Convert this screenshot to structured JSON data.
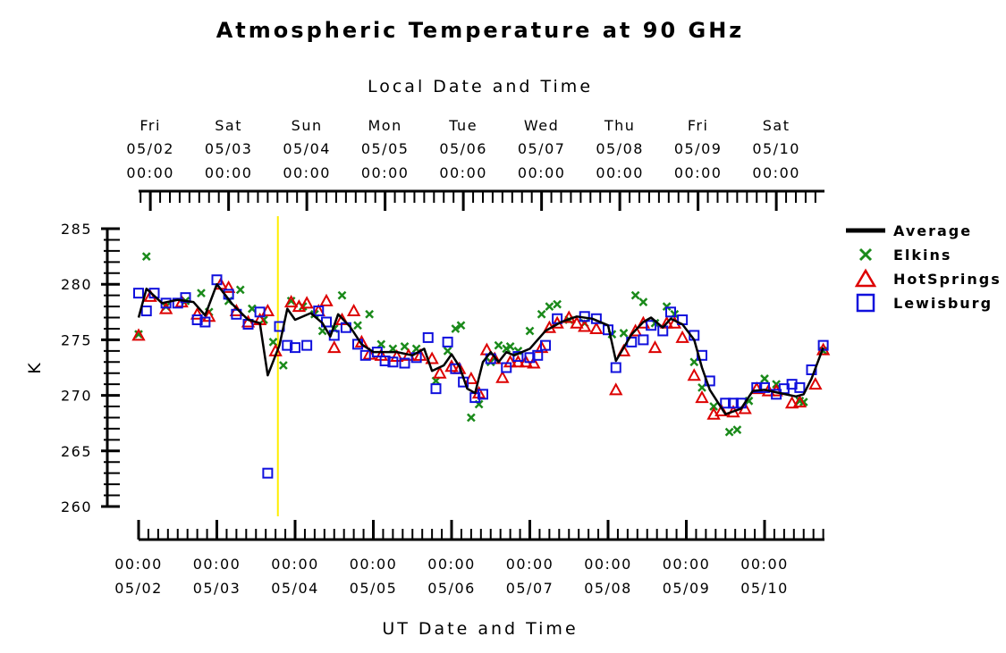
{
  "chart_data": {
    "type": "scatter",
    "title": "Atmospheric Temperature at 90 GHz",
    "top_axis_label": "Local Date and Time",
    "xlabel": "UT Date and Time",
    "ylabel": "K",
    "ylim": [
      260,
      285
    ],
    "yticks": [
      "260",
      "265",
      "270",
      "275",
      "280",
      "285"
    ],
    "xlim": [
      "2008-05-02 00:00",
      "2008-05-10 20:00"
    ],
    "x_units": "UT day-of-May (decimal, 2.0 = 05/02 00:00)",
    "bottom_ticks": [
      {
        "time": "00:00",
        "date": "05/02"
      },
      {
        "time": "00:00",
        "date": "05/03"
      },
      {
        "time": "00:00",
        "date": "05/04"
      },
      {
        "time": "00:00",
        "date": "05/05"
      },
      {
        "time": "00:00",
        "date": "05/06"
      },
      {
        "time": "00:00",
        "date": "05/07"
      },
      {
        "time": "00:00",
        "date": "05/08"
      },
      {
        "time": "00:00",
        "date": "05/09"
      },
      {
        "time": "00:00",
        "date": "05/10"
      }
    ],
    "top_ticks": [
      {
        "day": "Fri",
        "date": "05/02",
        "time": "00:00"
      },
      {
        "day": "Sat",
        "date": "05/03",
        "time": "00:00"
      },
      {
        "day": "Sun",
        "date": "05/04",
        "time": "00:00"
      },
      {
        "day": "Mon",
        "date": "05/05",
        "time": "00:00"
      },
      {
        "day": "Tue",
        "date": "05/06",
        "time": "00:00"
      },
      {
        "day": "Wed",
        "date": "05/07",
        "time": "00:00"
      },
      {
        "day": "Thu",
        "date": "05/08",
        "time": "00:00"
      },
      {
        "day": "Fri",
        "date": "05/09",
        "time": "00:00"
      },
      {
        "day": "Sat",
        "date": "05/10",
        "time": "00:00"
      }
    ],
    "current_time_marker": {
      "x": 3.78,
      "color": "#ffee00"
    },
    "legend_position": "right",
    "series": [
      {
        "name": "Average",
        "style": "line",
        "color": "#000000",
        "points": [
          [
            2.0,
            277.0
          ],
          [
            2.1,
            279.6
          ],
          [
            2.3,
            278.3
          ],
          [
            2.5,
            278.6
          ],
          [
            2.7,
            278.4
          ],
          [
            2.85,
            277.2
          ],
          [
            3.0,
            280.0
          ],
          [
            3.2,
            278.2
          ],
          [
            3.4,
            276.8
          ],
          [
            3.55,
            276.5
          ],
          [
            3.65,
            271.8
          ],
          [
            3.8,
            274.5
          ],
          [
            3.9,
            277.8
          ],
          [
            4.0,
            276.8
          ],
          [
            4.2,
            277.4
          ],
          [
            4.35,
            276.5
          ],
          [
            4.45,
            275.3
          ],
          [
            4.55,
            277.3
          ],
          [
            4.7,
            276.2
          ],
          [
            4.85,
            274.6
          ],
          [
            5.0,
            273.9
          ],
          [
            5.3,
            273.9
          ],
          [
            5.5,
            273.6
          ],
          [
            5.65,
            274.2
          ],
          [
            5.75,
            272.2
          ],
          [
            5.9,
            272.7
          ],
          [
            6.0,
            273.7
          ],
          [
            6.1,
            272.6
          ],
          [
            6.2,
            270.6
          ],
          [
            6.3,
            270.2
          ],
          [
            6.4,
            273.0
          ],
          [
            6.5,
            273.9
          ],
          [
            6.6,
            273.0
          ],
          [
            6.7,
            273.9
          ],
          [
            6.8,
            273.6
          ],
          [
            7.0,
            274.2
          ],
          [
            7.2,
            275.8
          ],
          [
            7.4,
            276.6
          ],
          [
            7.6,
            277.1
          ],
          [
            7.8,
            276.9
          ],
          [
            8.0,
            276.3
          ],
          [
            8.1,
            273.1
          ],
          [
            8.3,
            275.5
          ],
          [
            8.45,
            276.6
          ],
          [
            8.55,
            277.0
          ],
          [
            8.7,
            276.1
          ],
          [
            8.8,
            276.9
          ],
          [
            8.95,
            276.4
          ],
          [
            9.1,
            275.0
          ],
          [
            9.2,
            272.5
          ],
          [
            9.3,
            270.5
          ],
          [
            9.5,
            268.3
          ],
          [
            9.7,
            268.8
          ],
          [
            9.85,
            270.4
          ],
          [
            10.0,
            270.5
          ],
          [
            10.2,
            270.2
          ],
          [
            10.4,
            269.9
          ],
          [
            10.5,
            270.1
          ],
          [
            10.6,
            271.5
          ],
          [
            10.75,
            274.3
          ]
        ]
      },
      {
        "name": "Elkins",
        "style": "marker",
        "marker": "x",
        "color": "#1a8a1a",
        "points": [
          [
            2.0,
            275.5
          ],
          [
            2.1,
            282.5
          ],
          [
            2.35,
            278.0
          ],
          [
            2.6,
            278.5
          ],
          [
            2.8,
            279.2
          ],
          [
            2.9,
            277.5
          ],
          [
            3.15,
            278.5
          ],
          [
            3.3,
            279.5
          ],
          [
            3.45,
            277.8
          ],
          [
            3.6,
            276.8
          ],
          [
            3.72,
            274.8
          ],
          [
            3.85,
            272.7
          ],
          [
            3.95,
            278.5
          ],
          [
            4.1,
            278.0
          ],
          [
            4.25,
            277.3
          ],
          [
            4.35,
            275.8
          ],
          [
            4.5,
            276.0
          ],
          [
            4.6,
            279.0
          ],
          [
            4.8,
            276.3
          ],
          [
            4.95,
            277.3
          ],
          [
            5.1,
            274.6
          ],
          [
            5.25,
            274.2
          ],
          [
            5.4,
            274.4
          ],
          [
            5.55,
            274.2
          ],
          [
            5.8,
            271.3
          ],
          [
            5.95,
            274.0
          ],
          [
            6.05,
            276.0
          ],
          [
            6.12,
            276.3
          ],
          [
            6.25,
            268.0
          ],
          [
            6.35,
            269.2
          ],
          [
            6.5,
            273.0
          ],
          [
            6.6,
            274.5
          ],
          [
            6.7,
            274.2
          ],
          [
            6.75,
            274.4
          ],
          [
            6.85,
            274.0
          ],
          [
            7.0,
            275.8
          ],
          [
            7.15,
            277.3
          ],
          [
            7.25,
            278.0
          ],
          [
            7.35,
            278.2
          ],
          [
            7.5,
            276.8
          ],
          [
            7.7,
            276.5
          ],
          [
            8.05,
            275.5
          ],
          [
            8.2,
            275.6
          ],
          [
            8.35,
            279.0
          ],
          [
            8.45,
            278.4
          ],
          [
            8.6,
            276.5
          ],
          [
            8.75,
            278.0
          ],
          [
            8.85,
            277.3
          ],
          [
            9.1,
            273.0
          ],
          [
            9.2,
            270.7
          ],
          [
            9.35,
            269.0
          ],
          [
            9.55,
            266.7
          ],
          [
            9.65,
            266.9
          ],
          [
            9.8,
            269.5
          ],
          [
            10.0,
            271.5
          ],
          [
            10.15,
            271.0
          ],
          [
            10.45,
            269.5
          ],
          [
            10.5,
            269.4
          ],
          [
            10.75,
            274.0
          ]
        ]
      },
      {
        "name": "HotSprings",
        "style": "marker",
        "marker": "triangle",
        "color": "#dd0000",
        "points": [
          [
            2.0,
            275.4
          ],
          [
            2.15,
            278.9
          ],
          [
            2.35,
            277.8
          ],
          [
            2.55,
            278.4
          ],
          [
            2.75,
            277.3
          ],
          [
            2.9,
            277.1
          ],
          [
            3.05,
            280.0
          ],
          [
            3.15,
            279.7
          ],
          [
            3.25,
            277.6
          ],
          [
            3.4,
            276.6
          ],
          [
            3.55,
            276.8
          ],
          [
            3.65,
            277.6
          ],
          [
            3.75,
            274.0
          ],
          [
            3.95,
            278.4
          ],
          [
            4.05,
            278.0
          ],
          [
            4.15,
            278.3
          ],
          [
            4.3,
            277.6
          ],
          [
            4.4,
            278.5
          ],
          [
            4.5,
            274.3
          ],
          [
            4.6,
            276.8
          ],
          [
            4.75,
            277.6
          ],
          [
            4.85,
            274.8
          ],
          [
            4.95,
            273.7
          ],
          [
            5.1,
            273.6
          ],
          [
            5.3,
            273.5
          ],
          [
            5.45,
            273.6
          ],
          [
            5.6,
            273.6
          ],
          [
            5.75,
            273.3
          ],
          [
            5.85,
            272.0
          ],
          [
            6.0,
            272.6
          ],
          [
            6.1,
            272.4
          ],
          [
            6.25,
            271.5
          ],
          [
            6.35,
            270.2
          ],
          [
            6.45,
            274.1
          ],
          [
            6.55,
            273.3
          ],
          [
            6.65,
            271.6
          ],
          [
            6.75,
            273.0
          ],
          [
            6.85,
            273.0
          ],
          [
            6.95,
            273.0
          ],
          [
            7.05,
            272.9
          ],
          [
            7.15,
            274.3
          ],
          [
            7.25,
            276.1
          ],
          [
            7.35,
            276.5
          ],
          [
            7.5,
            277.0
          ],
          [
            7.6,
            276.5
          ],
          [
            7.7,
            276.2
          ],
          [
            7.85,
            276.0
          ],
          [
            8.1,
            270.5
          ],
          [
            8.2,
            274.0
          ],
          [
            8.35,
            275.8
          ],
          [
            8.45,
            276.5
          ],
          [
            8.6,
            274.3
          ],
          [
            8.75,
            276.5
          ],
          [
            8.85,
            276.5
          ],
          [
            8.95,
            275.2
          ],
          [
            9.1,
            271.8
          ],
          [
            9.2,
            269.8
          ],
          [
            9.35,
            268.3
          ],
          [
            9.45,
            268.6
          ],
          [
            9.6,
            268.5
          ],
          [
            9.75,
            268.8
          ],
          [
            9.9,
            270.6
          ],
          [
            10.05,
            270.4
          ],
          [
            10.15,
            270.4
          ],
          [
            10.35,
            269.3
          ],
          [
            10.45,
            269.4
          ],
          [
            10.65,
            271.0
          ],
          [
            10.75,
            274.1
          ]
        ]
      },
      {
        "name": "Lewisburg",
        "style": "marker",
        "marker": "square",
        "color": "#1010dd",
        "points": [
          [
            2.0,
            279.2
          ],
          [
            2.1,
            277.6
          ],
          [
            2.2,
            279.2
          ],
          [
            2.35,
            278.3
          ],
          [
            2.5,
            278.3
          ],
          [
            2.6,
            278.8
          ],
          [
            2.75,
            276.8
          ],
          [
            2.85,
            276.6
          ],
          [
            3.0,
            280.4
          ],
          [
            3.15,
            279.1
          ],
          [
            3.25,
            277.3
          ],
          [
            3.4,
            276.4
          ],
          [
            3.55,
            277.5
          ],
          [
            3.65,
            263.0
          ],
          [
            3.8,
            276.2
          ],
          [
            3.9,
            274.5
          ],
          [
            4.0,
            274.3
          ],
          [
            4.15,
            274.5
          ],
          [
            4.3,
            277.6
          ],
          [
            4.4,
            276.6
          ],
          [
            4.5,
            275.4
          ],
          [
            4.65,
            276.1
          ],
          [
            4.8,
            274.6
          ],
          [
            4.9,
            273.6
          ],
          [
            5.05,
            273.9
          ],
          [
            5.15,
            273.1
          ],
          [
            5.25,
            273.0
          ],
          [
            5.4,
            272.9
          ],
          [
            5.55,
            273.4
          ],
          [
            5.7,
            275.2
          ],
          [
            5.8,
            270.6
          ],
          [
            5.95,
            274.8
          ],
          [
            6.05,
            272.4
          ],
          [
            6.15,
            271.2
          ],
          [
            6.3,
            269.8
          ],
          [
            6.4,
            270.1
          ],
          [
            6.5,
            273.3
          ],
          [
            6.7,
            272.5
          ],
          [
            6.85,
            273.5
          ],
          [
            7.0,
            273.4
          ],
          [
            7.1,
            273.6
          ],
          [
            7.2,
            274.5
          ],
          [
            7.35,
            276.9
          ],
          [
            7.7,
            277.1
          ],
          [
            7.85,
            276.9
          ],
          [
            8.0,
            275.9
          ],
          [
            8.1,
            272.5
          ],
          [
            8.3,
            274.8
          ],
          [
            8.45,
            275.0
          ],
          [
            8.55,
            276.3
          ],
          [
            8.7,
            275.8
          ],
          [
            8.8,
            277.5
          ],
          [
            8.95,
            276.8
          ],
          [
            9.1,
            275.4
          ],
          [
            9.2,
            273.6
          ],
          [
            9.3,
            271.3
          ],
          [
            9.5,
            269.3
          ],
          [
            9.6,
            269.3
          ],
          [
            9.7,
            269.3
          ],
          [
            9.9,
            270.7
          ],
          [
            10.0,
            270.7
          ],
          [
            10.15,
            270.1
          ],
          [
            10.25,
            270.6
          ],
          [
            10.35,
            271.0
          ],
          [
            10.45,
            270.7
          ],
          [
            10.6,
            272.3
          ],
          [
            10.75,
            274.5
          ]
        ]
      }
    ]
  }
}
